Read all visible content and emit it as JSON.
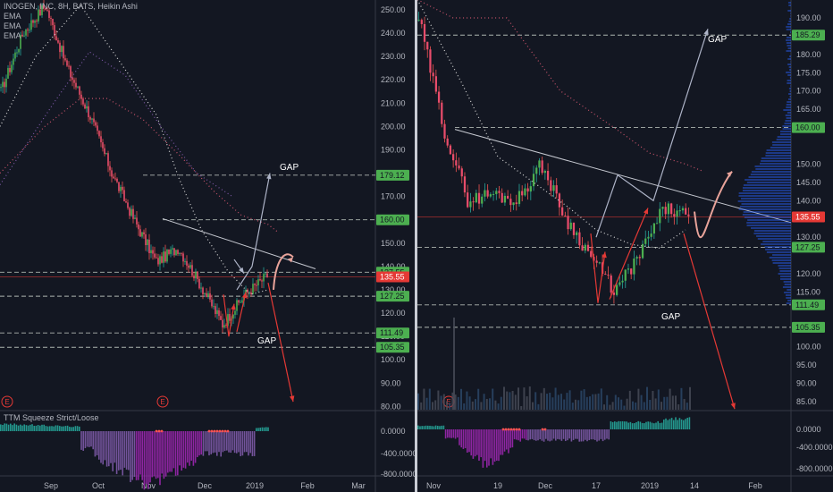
{
  "left": {
    "legend": {
      "symbol": "INOGEN, INC, 8H, BATS, Heikin Ashi",
      "lines": [
        "EMA",
        "EMA",
        "EMA"
      ]
    },
    "indicator_title": "TTM Squeeze Strict/Loose",
    "x_ticks": [
      "Sep",
      "Oct",
      "Nov",
      "Dec",
      "2019",
      "Feb",
      "Mar"
    ],
    "y_ticks": [
      "250.00",
      "240.00",
      "230.00",
      "220.00",
      "210.00",
      "200.00",
      "190.00",
      "180.00",
      "170.00",
      "160.00",
      "150.00",
      "140.00",
      "130.00",
      "120.00",
      "110.00",
      "100.00",
      "90.00",
      "80.00"
    ],
    "ind_ticks": [
      "0.0000",
      "-400.0000",
      "-800.0000"
    ],
    "price_labels": [
      {
        "text": "179.12",
        "value": 179.12,
        "color": "#4caf50"
      },
      {
        "text": "160.00",
        "value": 160.0,
        "color": "#4caf50"
      },
      {
        "text": "137.55",
        "value": 137.55,
        "color": "#4caf50"
      },
      {
        "text": "135.55",
        "value": 135.55,
        "color": "#e53935"
      },
      {
        "text": "127.25",
        "value": 127.25,
        "color": "#4caf50"
      },
      {
        "text": "111.49",
        "value": 111.49,
        "color": "#4caf50"
      },
      {
        "text": "105.35",
        "value": 105.35,
        "color": "#4caf50"
      }
    ],
    "annotations": [
      "GAP",
      "GAP"
    ],
    "event_markers": [
      "E",
      "E"
    ]
  },
  "right": {
    "x_ticks": [
      "Nov",
      "19",
      "Dec",
      "17",
      "2019",
      "14",
      "Feb"
    ],
    "y_ticks": [
      "190.00",
      "180.00",
      "175.00",
      "170.00",
      "165.00",
      "150.00",
      "145.00",
      "140.00",
      "130.00",
      "120.00",
      "115.00",
      "100.00",
      "95.00",
      "90.00",
      "85.00"
    ],
    "ind_ticks": [
      "0.0000",
      "-400.0000",
      "-800.0000"
    ],
    "price_labels": [
      {
        "text": "185.29",
        "value": 185.29,
        "color": "#4caf50"
      },
      {
        "text": "160.00",
        "value": 160.0,
        "color": "#4caf50"
      },
      {
        "text": "135.55",
        "value": 135.55,
        "color": "#e53935"
      },
      {
        "text": "127.25",
        "value": 127.25,
        "color": "#4caf50"
      },
      {
        "text": "111.49",
        "value": 111.49,
        "color": "#4caf50"
      },
      {
        "text": "105.35",
        "value": 105.35,
        "color": "#4caf50"
      }
    ],
    "annotations": [
      "GAP",
      "GAP"
    ],
    "event_markers": [
      "E"
    ]
  },
  "chart_data": [
    {
      "type": "candlestick",
      "title": "INOGEN, INC, 8H, BATS, Heikin Ashi",
      "ylim": [
        78,
        255
      ],
      "x_axis": [
        "Sep",
        "Oct",
        "Nov",
        "Dec",
        "2019",
        "Feb",
        "Mar"
      ],
      "approx_path": [
        {
          "t": "Aug",
          "close": 215
        },
        {
          "t": "early Sep",
          "close": 240
        },
        {
          "t": "late Sep",
          "close": 252
        },
        {
          "t": "Oct",
          "close": 225
        },
        {
          "t": "mid Oct",
          "close": 205
        },
        {
          "t": "late Oct",
          "close": 180
        },
        {
          "t": "Nov",
          "close": 160
        },
        {
          "t": "mid Nov",
          "close": 142
        },
        {
          "t": "late Nov",
          "close": 148
        },
        {
          "t": "Dec",
          "close": 132
        },
        {
          "t": "mid Dec",
          "close": 115
        },
        {
          "t": "late Dec",
          "close": 128
        },
        {
          "t": "Jan",
          "close": 136
        }
      ],
      "levels": [
        179.12,
        160.0,
        137.55,
        135.55,
        127.25,
        111.49,
        105.35
      ],
      "last_price": 135.55
    },
    {
      "type": "candlestick",
      "title": "",
      "ylim": [
        82,
        197
      ],
      "x_axis": [
        "Nov",
        "19",
        "Dec",
        "17",
        "2019",
        "14",
        "Feb"
      ],
      "approx_path": [
        {
          "t": "Nov",
          "close": 190
        },
        {
          "t": "early Nov",
          "close": 160
        },
        {
          "t": "mid Nov",
          "close": 140
        },
        {
          "t": "19",
          "close": 142
        },
        {
          "t": "late Nov",
          "close": 140
        },
        {
          "t": "Dec",
          "close": 150
        },
        {
          "t": "mid Dec",
          "close": 135
        },
        {
          "t": "17",
          "close": 125
        },
        {
          "t": "late Dec",
          "close": 115
        },
        {
          "t": "2019",
          "close": 125
        },
        {
          "t": "early Jan",
          "close": 138
        },
        {
          "t": "14",
          "close": 135.5
        }
      ],
      "levels": [
        185.29,
        160.0,
        135.55,
        127.25,
        111.49,
        105.35
      ],
      "last_price": 135.55
    }
  ]
}
